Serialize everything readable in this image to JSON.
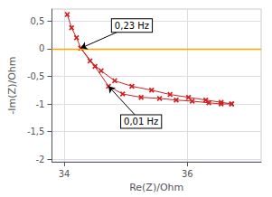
{
  "chart_data": {
    "type": "line",
    "xlabel": "Re(Z)/Ohm",
    "ylabel": "-Im(Z)/Ohm",
    "xlim": [
      33.8,
      37.2
    ],
    "ylim": [
      -2.05,
      0.72
    ],
    "xticks": [
      34,
      36
    ],
    "yticks": [
      {
        "value": 0.5,
        "label": "0,5"
      },
      0,
      {
        "value": -0.5,
        "label": "-0,5"
      },
      -1,
      {
        "value": -1.5,
        "label": "-1,5"
      },
      -2
    ],
    "grid": true,
    "marker": "x",
    "series": [
      {
        "color": "#CC2222",
        "x": [
          34.05,
          34.12,
          34.2,
          34.27,
          34.42,
          34.6,
          34.82,
          35.1,
          35.42,
          35.72,
          36.02,
          36.3,
          36.55,
          36.72
        ],
        "values": [
          0.62,
          0.38,
          0.2,
          0.01,
          -0.22,
          -0.4,
          -0.58,
          -0.68,
          -0.75,
          -0.83,
          -0.88,
          -0.93,
          -0.97,
          -1.0
        ]
      },
      {
        "color": "#CC2222",
        "x": [
          34.27,
          34.5,
          34.72,
          34.95,
          35.25,
          35.55,
          35.82,
          36.08,
          36.35,
          36.55,
          36.72
        ],
        "values": [
          0.01,
          -0.32,
          -0.68,
          -0.82,
          -0.88,
          -0.9,
          -0.93,
          -0.95,
          -0.98,
          -1.0,
          -1.0
        ]
      }
    ],
    "hline": {
      "y": 0,
      "color": "#FFA500"
    },
    "annotations": [
      {
        "text": "0,23 Hz",
        "xy": [
          34.27,
          0.01
        ],
        "xytext": [
          35.1,
          0.42
        ]
      },
      {
        "text": "0,01 Hz",
        "xy": [
          34.72,
          -0.68
        ],
        "xytext": [
          35.25,
          -1.32
        ]
      }
    ]
  }
}
